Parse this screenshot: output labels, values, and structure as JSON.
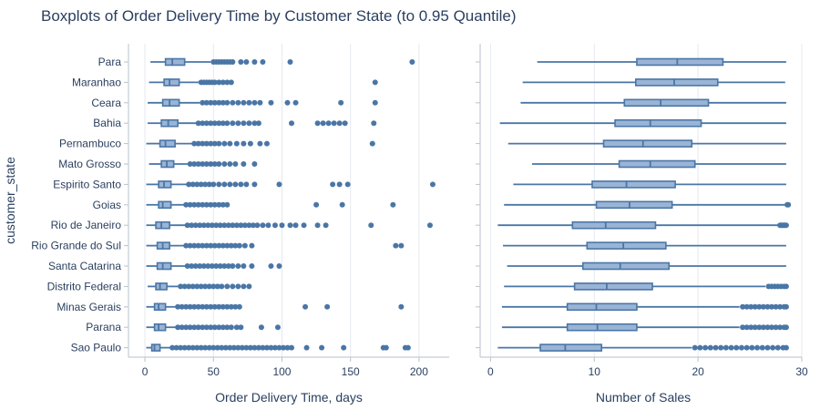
{
  "chart_data": {
    "type": "boxplot",
    "title": "Boxplots of Order Delivery Time by Customer State (to 0.95 Quantile)",
    "ylabel": "customer_state",
    "states": [
      "Para",
      "Maranhao",
      "Ceara",
      "Bahia",
      "Pernambuco",
      "Mato Grosso",
      "Espirito Santo",
      "Goias",
      "Rio de Janeiro",
      "Rio Grande do Sul",
      "Santa Catarina",
      "Distrito Federal",
      "Minas Gerais",
      "Parana",
      "Sao Paulo"
    ],
    "box_color": "#4a76a6",
    "box_fill": "#9ab4d6",
    "panels": [
      {
        "xlabel": "Order Delivery Time, days",
        "xlim": [
          -12,
          222
        ],
        "xticks": [
          0,
          50,
          100,
          150,
          200
        ],
        "boxes": [
          {
            "state": "Para",
            "min": 4,
            "q1": 15,
            "median": 20,
            "q3": 29,
            "max": 48,
            "outliers": [
              50,
              52,
              54,
              56,
              58,
              60,
              62,
              64,
              70,
              74,
              80,
              86,
              106,
              195
            ]
          },
          {
            "state": "Maranhao",
            "min": 3,
            "q1": 14,
            "median": 18,
            "q3": 25,
            "max": 40,
            "outliers": [
              41,
              43,
              45,
              47,
              49,
              51,
              54,
              57,
              60,
              63,
              168
            ]
          },
          {
            "state": "Ceara",
            "min": 2,
            "q1": 13,
            "median": 18,
            "q3": 25,
            "max": 40,
            "outliers": [
              42,
              45,
              48,
              51,
              54,
              57,
              60,
              64,
              68,
              72,
              76,
              80,
              84,
              92,
              104,
              110,
              143,
              168
            ]
          },
          {
            "state": "Bahia",
            "min": 2,
            "q1": 12,
            "median": 17,
            "q3": 24,
            "max": 38,
            "outliers": [
              39,
              42,
              45,
              48,
              51,
              54,
              57,
              60,
              64,
              68,
              72,
              76,
              80,
              83,
              107,
              126,
              130,
              134,
              138,
              142,
              146,
              167
            ]
          },
          {
            "state": "Pernambuco",
            "min": 1,
            "q1": 11,
            "median": 15,
            "q3": 22,
            "max": 35,
            "outliers": [
              36,
              39,
              42,
              45,
              48,
              51,
              54,
              58,
              62,
              67,
              72,
              77,
              84,
              89,
              166
            ]
          },
          {
            "state": "Mato Grosso",
            "min": 3,
            "q1": 12,
            "median": 16,
            "q3": 21,
            "max": 32,
            "outliers": [
              33,
              36,
              39,
              42,
              45,
              48,
              51,
              54,
              58,
              62,
              66,
              72,
              80
            ]
          },
          {
            "state": "Espirito Santo",
            "min": 1,
            "q1": 10,
            "median": 14,
            "q3": 19,
            "max": 31,
            "outliers": [
              32,
              35,
              38,
              41,
              44,
              47,
              50,
              54,
              58,
              62,
              66,
              70,
              74,
              80,
              98,
              137,
              142,
              148,
              210
            ]
          },
          {
            "state": "Goias",
            "min": 1,
            "q1": 10,
            "median": 13,
            "q3": 19,
            "max": 29,
            "outliers": [
              30,
              33,
              36,
              39,
              42,
              45,
              48,
              51,
              54,
              57,
              60,
              125,
              144,
              181
            ]
          },
          {
            "state": "Rio de Janeiro",
            "min": 1,
            "q1": 8,
            "median": 12,
            "q3": 18,
            "max": 30,
            "outliers": [
              31,
              34,
              37,
              40,
              43,
              46,
              49,
              52,
              55,
              58,
              61,
              64,
              67,
              70,
              73,
              76,
              79,
              82,
              86,
              90,
              95,
              100,
              106,
              110,
              116,
              126,
              132,
              165,
              208
            ]
          },
          {
            "state": "Rio Grande do Sul",
            "min": 1,
            "q1": 9,
            "median": 13,
            "q3": 18,
            "max": 29,
            "outliers": [
              30,
              33,
              36,
              39,
              42,
              45,
              48,
              51,
              54,
              57,
              60,
              63,
              66,
              69,
              73,
              78,
              183,
              187
            ]
          },
          {
            "state": "Santa Catarina",
            "min": 1,
            "q1": 9,
            "median": 13,
            "q3": 19,
            "max": 30,
            "outliers": [
              31,
              34,
              37,
              40,
              43,
              46,
              49,
              52,
              55,
              58,
              61,
              64,
              68,
              72,
              78,
              92,
              98
            ]
          },
          {
            "state": "Distrito Federal",
            "min": 2,
            "q1": 8,
            "median": 11,
            "q3": 16,
            "max": 25,
            "outliers": [
              26,
              29,
              32,
              35,
              38,
              41,
              44,
              47,
              50,
              53,
              56,
              60,
              64,
              68,
              72,
              76
            ]
          },
          {
            "state": "Minas Gerais",
            "min": 1,
            "q1": 7,
            "median": 10,
            "q3": 15,
            "max": 23,
            "outliers": [
              24,
              27,
              30,
              33,
              36,
              39,
              42,
              45,
              48,
              51,
              54,
              57,
              60,
              63,
              66,
              69,
              117,
              133,
              187
            ]
          },
          {
            "state": "Parana",
            "min": 1,
            "q1": 7,
            "median": 10,
            "q3": 15,
            "max": 23,
            "outliers": [
              24,
              27,
              30,
              33,
              36,
              39,
              42,
              45,
              48,
              51,
              54,
              57,
              60,
              63,
              67,
              70,
              85,
              97
            ]
          },
          {
            "state": "Sao Paulo",
            "min": 1,
            "q1": 5,
            "median": 7,
            "q3": 11,
            "max": 19,
            "outliers": [
              20,
              23,
              26,
              29,
              32,
              35,
              38,
              41,
              44,
              47,
              50,
              53,
              56,
              59,
              62,
              65,
              68,
              71,
              74,
              77,
              80,
              83,
              86,
              89,
              92,
              95,
              98,
              101,
              104,
              107,
              118,
              129,
              145,
              174,
              176,
              190,
              192
            ]
          }
        ]
      },
      {
        "xlabel": "Number of Sales",
        "xlim": [
          -1,
          30
        ],
        "xticks": [
          0,
          10,
          20,
          30
        ],
        "boxes": [
          {
            "state": "Para",
            "min": 4.5,
            "q1": 14.1,
            "median": 18,
            "q3": 22.4,
            "max": 28.5,
            "outliers": []
          },
          {
            "state": "Maranhao",
            "min": 3.1,
            "q1": 14,
            "median": 17.7,
            "q3": 21.9,
            "max": 28.4,
            "outliers": []
          },
          {
            "state": "Ceara",
            "min": 2.9,
            "q1": 12.9,
            "median": 16.4,
            "q3": 21,
            "max": 28.5,
            "outliers": []
          },
          {
            "state": "Bahia",
            "min": 0.9,
            "q1": 12,
            "median": 15.4,
            "q3": 20.3,
            "max": 28.5,
            "outliers": []
          },
          {
            "state": "Pernambuco",
            "min": 1.7,
            "q1": 10.9,
            "median": 14.7,
            "q3": 19.4,
            "max": 28.5,
            "outliers": []
          },
          {
            "state": "Mato Grosso",
            "min": 4,
            "q1": 12.4,
            "median": 15.4,
            "q3": 19.7,
            "max": 28.5,
            "outliers": []
          },
          {
            "state": "Espirito Santo",
            "min": 2.2,
            "q1": 9.8,
            "median": 13.1,
            "q3": 17.8,
            "max": 28.5,
            "outliers": []
          },
          {
            "state": "Goias",
            "min": 1.3,
            "q1": 10.2,
            "median": 13.4,
            "q3": 17.5,
            "max": 28.4,
            "outliers": [
              28.6,
              28.7
            ]
          },
          {
            "state": "Rio de Janeiro",
            "min": 0.7,
            "q1": 7.9,
            "median": 11.1,
            "q3": 15.9,
            "max": 27.8,
            "outliers": [
              27.9,
              28,
              28.1,
              28.2,
              28.3,
              28.4,
              28.5
            ]
          },
          {
            "state": "Rio Grande do Sul",
            "min": 1.2,
            "q1": 9.3,
            "median": 12.8,
            "q3": 16.9,
            "max": 28.5,
            "outliers": []
          },
          {
            "state": "Santa Catarina",
            "min": 1.6,
            "q1": 8.9,
            "median": 12.5,
            "q3": 17.2,
            "max": 28.5,
            "outliers": []
          },
          {
            "state": "Distrito Federal",
            "min": 1.3,
            "q1": 8.1,
            "median": 11.2,
            "q3": 15.6,
            "max": 26.5,
            "outliers": [
              26.8,
              27.1,
              27.4,
              27.7,
              28,
              28.3,
              28.5
            ]
          },
          {
            "state": "Minas Gerais",
            "min": 1.1,
            "q1": 7.4,
            "median": 10.2,
            "q3": 14.1,
            "max": 24,
            "outliers": [
              24.3,
              24.7,
              25.1,
              25.5,
              25.9,
              26.3,
              26.7,
              27.1,
              27.5,
              27.9,
              28.3,
              28.5
            ]
          },
          {
            "state": "Parana",
            "min": 1.1,
            "q1": 7.4,
            "median": 10.3,
            "q3": 14.1,
            "max": 24,
            "outliers": [
              24.3,
              24.7,
              25.1,
              25.5,
              25.9,
              26.3,
              26.7,
              27.1,
              27.5,
              27.9,
              28.3,
              28.5
            ]
          },
          {
            "state": "Sao Paulo",
            "min": 0.7,
            "q1": 4.8,
            "median": 7.2,
            "q3": 10.7,
            "max": 19.4,
            "outliers": [
              19.7,
              20.2,
              20.7,
              21.2,
              21.7,
              22.2,
              22.7,
              23.2,
              23.7,
              24.2,
              24.7,
              25.2,
              25.7,
              26.2,
              26.7,
              27.2,
              27.7,
              28.2,
              28.5
            ]
          }
        ]
      }
    ]
  }
}
